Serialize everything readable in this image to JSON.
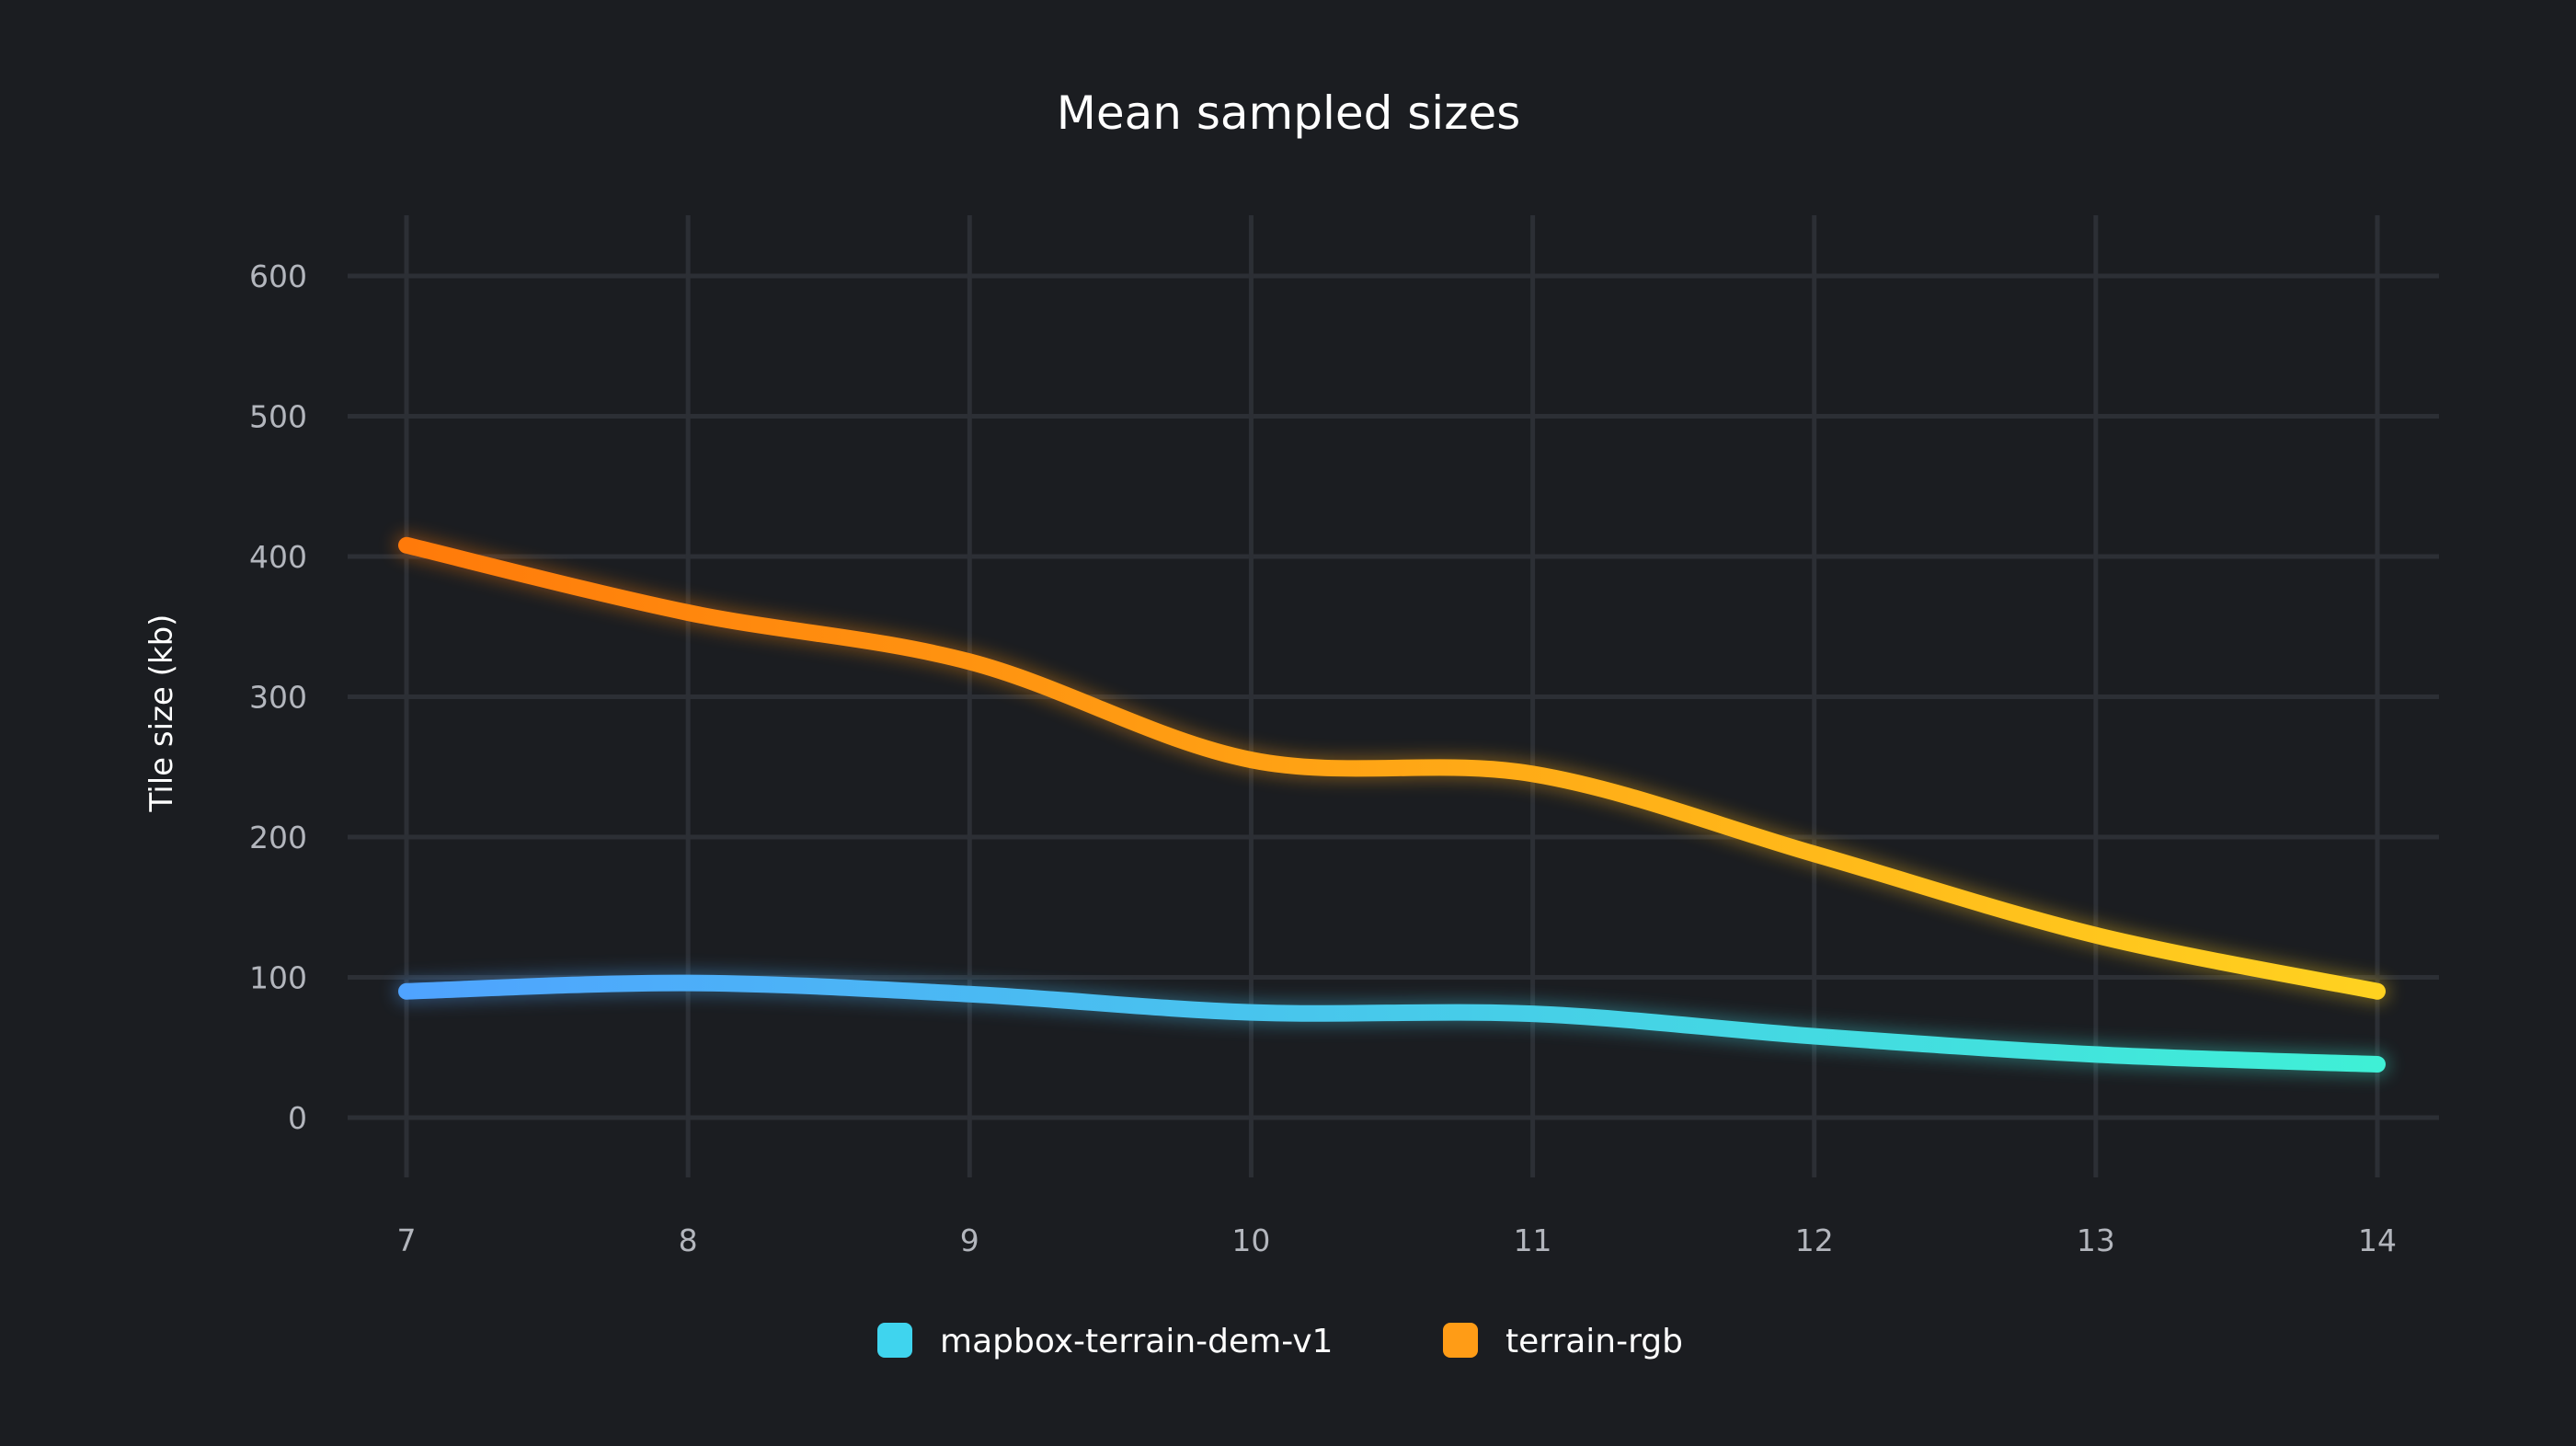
{
  "chart_data": {
    "type": "line",
    "title": "Mean sampled sizes",
    "xlabel": "",
    "ylabel": "Tile size (kb)",
    "x": [
      7,
      8,
      9,
      10,
      11,
      12,
      13,
      14
    ],
    "x_ticks": [
      "7",
      "8",
      "9",
      "10",
      "11",
      "12",
      "13",
      "14"
    ],
    "ylim": [
      0,
      600
    ],
    "y_ticks": [
      "0",
      "100",
      "200",
      "300",
      "400",
      "500",
      "600"
    ],
    "grid": true,
    "legend_position": "bottom-center",
    "series": [
      {
        "name": "mapbox-terrain-dem-v1",
        "values": [
          90,
          96,
          88,
          75,
          74,
          58,
          45,
          38
        ],
        "color_start": "#4fa3ff",
        "color_end": "#3ff0d6",
        "legend_color": "#3fd4ee"
      },
      {
        "name": "terrain-rgb",
        "values": [
          408,
          360,
          325,
          255,
          245,
          188,
          130,
          90
        ],
        "color_start": "#ff7a0a",
        "color_end": "#ffd220",
        "legend_color": "#ff9c16"
      }
    ]
  }
}
